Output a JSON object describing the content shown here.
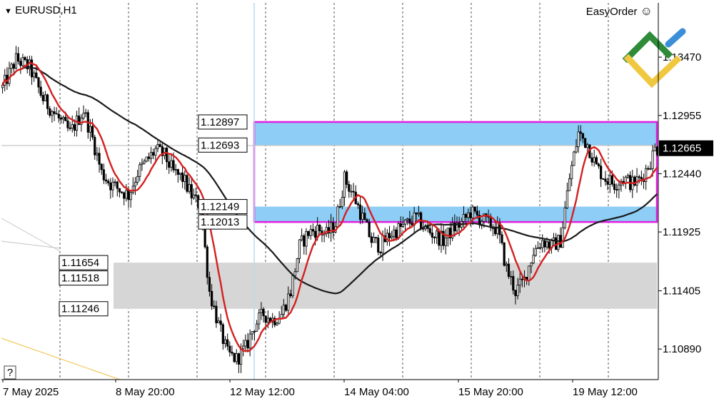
{
  "header": {
    "symbol": "EURUSD,H1",
    "easyorder": "EasyOrder",
    "help": "?"
  },
  "chart_data": {
    "type": "candlestick",
    "symbol": "EURUSD",
    "timeframe": "H1",
    "ylim": [
      1.1062,
      1.1395
    ],
    "y_ticks": [
      "1.13470",
      "1.12955",
      "1.12440",
      "1.11925",
      "1.11405",
      "1.10890"
    ],
    "x_ticks": [
      "7 May 2025",
      "8 May 20:00",
      "12 May 12:00",
      "14 May 04:00",
      "15 May 20:00",
      "19 May 12:00"
    ],
    "current_price": "1.12665",
    "price_levels": [
      "1.12897",
      "1.12693",
      "1.12149",
      "1.12013",
      "1.11654",
      "1.11518",
      "1.11246"
    ],
    "zones": [
      {
        "name": "resistance",
        "top": 1.12897,
        "bottom": 1.12693,
        "color": "#8ecdf5"
      },
      {
        "name": "support",
        "top": 1.12149,
        "bottom": 1.12013,
        "color": "#8ecdf5"
      },
      {
        "name": "lower-range",
        "top": 1.11654,
        "bottom": 1.11246,
        "color": "#d6d6d6"
      }
    ],
    "highlight_box": {
      "top": 1.12897,
      "bottom": 1.12013,
      "color": "#e020e0"
    },
    "series": [
      {
        "type": "sma-fast",
        "color": "#d42020"
      },
      {
        "type": "sma-slow",
        "color": "#1a1a1a"
      }
    ],
    "anchors": [
      [
        0,
        1.132
      ],
      [
        6,
        1.1345
      ],
      [
        12,
        1.1338
      ],
      [
        18,
        1.131
      ],
      [
        24,
        1.1295
      ],
      [
        30,
        1.128
      ],
      [
        36,
        1.13
      ],
      [
        40,
        1.1275
      ],
      [
        44,
        1.1245
      ],
      [
        48,
        1.1235
      ],
      [
        52,
        1.123
      ],
      [
        56,
        1.1225
      ],
      [
        60,
        1.1245
      ],
      [
        64,
        1.1255
      ],
      [
        68,
        1.1265
      ],
      [
        72,
        1.126
      ],
      [
        76,
        1.1245
      ],
      [
        80,
        1.124
      ],
      [
        84,
        1.1225
      ],
      [
        88,
        1.1215
      ],
      [
        92,
        1.114
      ],
      [
        96,
        1.111
      ],
      [
        100,
        1.1085
      ],
      [
        104,
        1.108
      ],
      [
        108,
        1.109
      ],
      [
        112,
        1.111
      ],
      [
        116,
        1.112
      ],
      [
        120,
        1.1115
      ],
      [
        124,
        1.112
      ],
      [
        128,
        1.114
      ],
      [
        132,
        1.118
      ],
      [
        136,
        1.1192
      ],
      [
        140,
        1.1195
      ],
      [
        144,
        1.119
      ],
      [
        148,
        1.12
      ],
      [
        152,
        1.124
      ],
      [
        156,
        1.1225
      ],
      [
        160,
        1.1205
      ],
      [
        164,
        1.1185
      ],
      [
        168,
        1.118
      ],
      [
        172,
        1.119
      ],
      [
        176,
        1.1195
      ],
      [
        180,
        1.12
      ],
      [
        184,
        1.1205
      ],
      [
        188,
        1.1195
      ],
      [
        192,
        1.119
      ],
      [
        196,
        1.1185
      ],
      [
        200,
        1.1195
      ],
      [
        204,
        1.12
      ],
      [
        208,
        1.121
      ],
      [
        212,
        1.1205
      ],
      [
        216,
        1.12
      ],
      [
        220,
        1.1195
      ],
      [
        224,
        1.116
      ],
      [
        228,
        1.114
      ],
      [
        232,
        1.115
      ],
      [
        236,
        1.1175
      ],
      [
        240,
        1.1185
      ],
      [
        244,
        1.118
      ],
      [
        248,
        1.1185
      ],
      [
        252,
        1.124
      ],
      [
        256,
        1.128
      ],
      [
        260,
        1.127
      ],
      [
        264,
        1.125
      ],
      [
        268,
        1.124
      ],
      [
        272,
        1.1235
      ],
      [
        276,
        1.124
      ],
      [
        280,
        1.1235
      ],
      [
        284,
        1.124
      ],
      [
        288,
        1.1255
      ],
      [
        290,
        1.1266
      ]
    ]
  }
}
